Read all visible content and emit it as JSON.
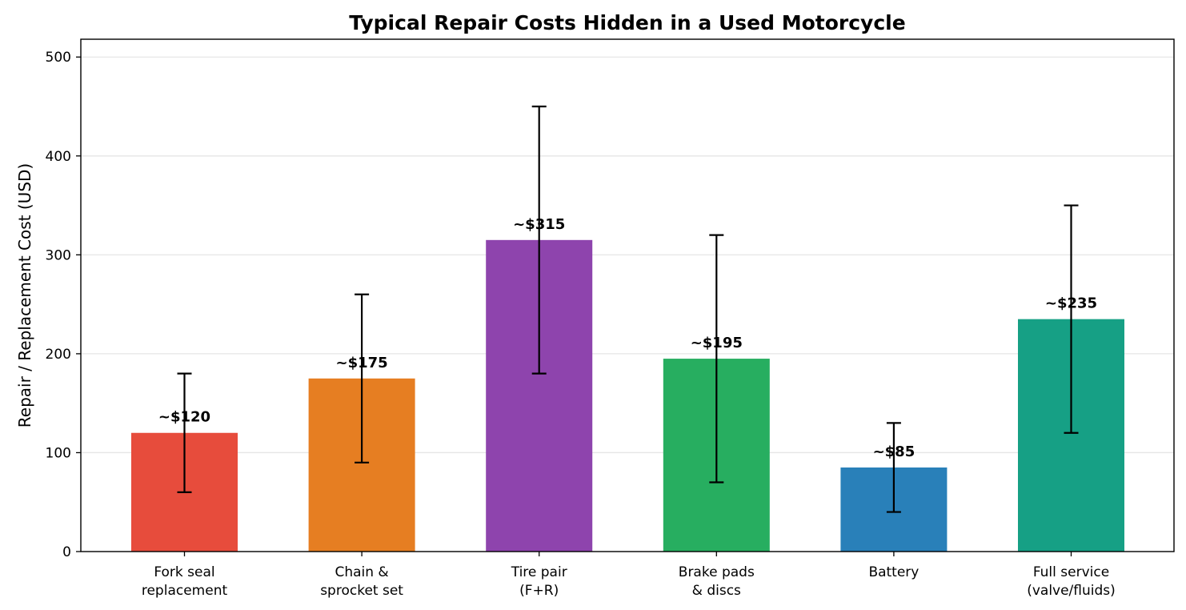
{
  "chart_data": {
    "type": "bar",
    "title": "Typical Repair Costs Hidden in a Used Motorcycle",
    "xlabel": "",
    "ylabel": "Repair / Replacement Cost (USD)",
    "ylim": [
      0,
      518
    ],
    "yticks": [
      0,
      100,
      200,
      300,
      400,
      500
    ],
    "grid": "horizontal",
    "categories": [
      [
        "Fork seal",
        "replacement"
      ],
      [
        "Chain &",
        "sprocket set"
      ],
      [
        "Tire pair",
        "(F+R)"
      ],
      [
        "Brake pads",
        "& discs"
      ],
      [
        "Battery"
      ],
      [
        "Full service",
        "(valve/fluids)"
      ]
    ],
    "values": [
      120,
      175,
      315,
      195,
      85,
      235
    ],
    "error_low": [
      60,
      90,
      180,
      70,
      40,
      120
    ],
    "error_high": [
      180,
      260,
      450,
      320,
      130,
      350
    ],
    "data_labels": [
      "~$120",
      "~$175",
      "~$315",
      "~$195",
      "~$85",
      "~$235"
    ],
    "colors": [
      "#e74c3c",
      "#e67e22",
      "#8e44ad",
      "#27ae60",
      "#2980b9",
      "#16a085"
    ]
  }
}
